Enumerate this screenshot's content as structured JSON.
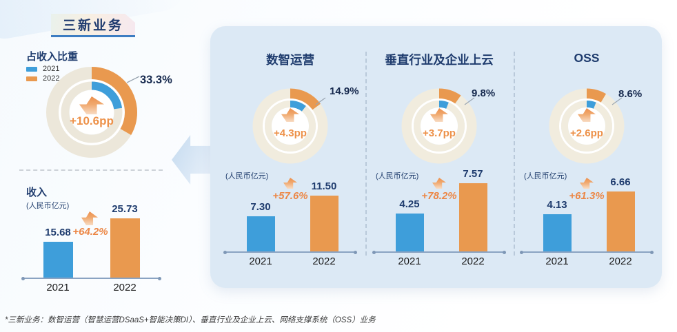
{
  "title_badge": {
    "label": "三新业务"
  },
  "left": {
    "share": {
      "heading": "占收入比重",
      "legend": [
        {
          "label": "2021",
          "color": "#3E9EDA"
        },
        {
          "label": "2022",
          "color": "#E9994F"
        }
      ],
      "pct_2021": 22.7,
      "pct_2022": 33.3,
      "pct_label": "33.3%",
      "delta_label": "+10.6pp"
    },
    "revenue": {
      "heading": "收入",
      "unit": "(人民币亿元)",
      "years": [
        "2021",
        "2022"
      ],
      "values": [
        15.68,
        25.73
      ],
      "value_labels": [
        "15.68",
        "25.73"
      ],
      "growth_label": "+64.2%"
    }
  },
  "panel": {
    "columns": [
      {
        "title": "数智运营",
        "pct_2021": 10.6,
        "pct_2022": 14.9,
        "pct_label": "14.9%",
        "delta_label": "+4.3pp",
        "unit": "(人民币亿元)",
        "years": [
          "2021",
          "2022"
        ],
        "values": [
          7.3,
          11.5
        ],
        "value_labels": [
          "7.30",
          "11.50"
        ],
        "growth_label": "+57.6%"
      },
      {
        "title": "垂直行业及企业上云",
        "pct_2021": 6.1,
        "pct_2022": 9.8,
        "pct_label": "9.8%",
        "delta_label": "+3.7pp",
        "unit": "(人民币亿元)",
        "years": [
          "2021",
          "2022"
        ],
        "values": [
          4.25,
          7.57
        ],
        "value_labels": [
          "4.25",
          "7.57"
        ],
        "growth_label": "+78.2%"
      },
      {
        "title": "OSS",
        "pct_2021": 6.0,
        "pct_2022": 8.6,
        "pct_label": "8.6%",
        "delta_label": "+2.6pp",
        "unit": "(人民币亿元)",
        "years": [
          "2021",
          "2022"
        ],
        "values": [
          4.13,
          6.66
        ],
        "value_labels": [
          "4.13",
          "6.66"
        ],
        "growth_label": "+61.3%"
      }
    ]
  },
  "footnote": "*三新业务：数智运营（智慧运营DSaaS+智能决策DI）、垂直行业及企业上云、网络支撑系统（OSS）业务",
  "colors": {
    "blue": "#3E9EDA",
    "orange": "#E9994F",
    "navy_text": "#1F3C6E",
    "orange_text": "#ED9149",
    "growth_text": "#EC8746",
    "ring_beige": "#EEE8DB",
    "panel_bg": "#DCE9F5"
  },
  "chart_data": [
    {
      "type": "pie",
      "subtype": "donut",
      "title": "三新业务占收入比重",
      "unit": "%",
      "series": [
        {
          "name": "2021",
          "value": 22.7
        },
        {
          "name": "2022",
          "value": 33.3
        }
      ],
      "annotation": "+10.6pp",
      "callout_label": "33.3%",
      "legend_position": "top-left"
    },
    {
      "type": "bar",
      "title": "三新业务收入",
      "unit": "人民币亿元",
      "categories": [
        "2021",
        "2022"
      ],
      "values": [
        15.68,
        25.73
      ],
      "series_colors": [
        "#3E9EDA",
        "#E9994F"
      ],
      "growth": "+64.2%"
    },
    {
      "type": "pie",
      "subtype": "donut",
      "title": "数智运营占收入比重",
      "unit": "%",
      "series": [
        {
          "name": "2021",
          "value": 10.6
        },
        {
          "name": "2022",
          "value": 14.9
        }
      ],
      "annotation": "+4.3pp",
      "callout_label": "14.9%"
    },
    {
      "type": "bar",
      "title": "数智运营收入",
      "unit": "人民币亿元",
      "categories": [
        "2021",
        "2022"
      ],
      "values": [
        7.3,
        11.5
      ],
      "series_colors": [
        "#3E9EDA",
        "#E9994F"
      ],
      "growth": "+57.6%"
    },
    {
      "type": "pie",
      "subtype": "donut",
      "title": "垂直行业及企业上云占收入比重",
      "unit": "%",
      "series": [
        {
          "name": "2021",
          "value": 6.1
        },
        {
          "name": "2022",
          "value": 9.8
        }
      ],
      "annotation": "+3.7pp",
      "callout_label": "9.8%"
    },
    {
      "type": "bar",
      "title": "垂直行业及企业上云收入",
      "unit": "人民币亿元",
      "categories": [
        "2021",
        "2022"
      ],
      "values": [
        4.25,
        7.57
      ],
      "series_colors": [
        "#3E9EDA",
        "#E9994F"
      ],
      "growth": "+78.2%"
    },
    {
      "type": "pie",
      "subtype": "donut",
      "title": "OSS占收入比重",
      "unit": "%",
      "series": [
        {
          "name": "2021",
          "value": 6.0
        },
        {
          "name": "2022",
          "value": 8.6
        }
      ],
      "annotation": "+2.6pp",
      "callout_label": "8.6%"
    },
    {
      "type": "bar",
      "title": "OSS收入",
      "unit": "人民币亿元",
      "categories": [
        "2021",
        "2022"
      ],
      "values": [
        4.13,
        6.66
      ],
      "series_colors": [
        "#3E9EDA",
        "#E9994F"
      ],
      "growth": "+61.3%"
    }
  ]
}
